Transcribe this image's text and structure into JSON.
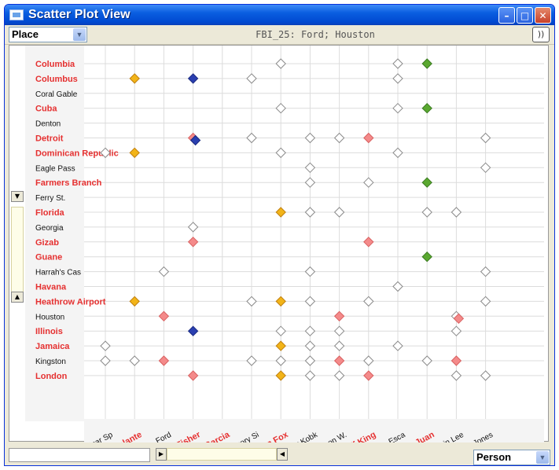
{
  "window": {
    "title": "Scatter Plot View",
    "controls": {
      "minimize": "–",
      "maximize": "□",
      "close": "✕"
    }
  },
  "toolbar": {
    "y_attribute": "Place",
    "status": "FBI_25: Ford; Houston",
    "sound_icon": "))"
  },
  "footer": {
    "x_attribute": "Person",
    "scroll_left": "◀",
    "scroll_right": "◀"
  },
  "colors": {
    "highlight_text": "#e53030",
    "normal_text": "#111111",
    "marker_outline": "#8a8a8a",
    "marker_pink": "#f48a8a",
    "marker_yellow": "#f2b418",
    "marker_green": "#5aa830",
    "marker_blue": "#2a3fb0",
    "grid": "#dcdcdc"
  },
  "chart_data": {
    "type": "scatter",
    "y_categories": [
      {
        "label": "Columbia",
        "highlight": true
      },
      {
        "label": "Columbus",
        "highlight": true
      },
      {
        "label": "Coral Gable",
        "highlight": false
      },
      {
        "label": "Cuba",
        "highlight": true
      },
      {
        "label": "Denton",
        "highlight": false
      },
      {
        "label": "Detroit",
        "highlight": true
      },
      {
        "label": "Dominican Republic",
        "highlight": true
      },
      {
        "label": "Eagle Pass",
        "highlight": false
      },
      {
        "label": "Farmers Branch",
        "highlight": true
      },
      {
        "label": "Ferry St.",
        "highlight": false
      },
      {
        "label": "Florida",
        "highlight": true
      },
      {
        "label": "Georgia",
        "highlight": false
      },
      {
        "label": "Gizab",
        "highlight": true
      },
      {
        "label": "Guane",
        "highlight": true
      },
      {
        "label": "Harrah's Cas",
        "highlight": false
      },
      {
        "label": "Havana",
        "highlight": true
      },
      {
        "label": "Heathrow Airport",
        "highlight": true
      },
      {
        "label": "Houston",
        "highlight": false
      },
      {
        "label": "Illinois",
        "highlight": true
      },
      {
        "label": "Jamaica",
        "highlight": true
      },
      {
        "label": "Kingston",
        "highlight": false
      },
      {
        "label": "London",
        "highlight": true
      }
    ],
    "x_categories": [
      {
        "label": "Edgar Sp",
        "highlight": false
      },
      {
        "label": "Escalante",
        "highlight": true
      },
      {
        "label": "Ford",
        "highlight": false
      },
      {
        "label": "Fred Fisher",
        "highlight": true
      },
      {
        "label": "George Garcia",
        "highlight": true
      },
      {
        "label": "Gregory Si",
        "highlight": false
      },
      {
        "label": "Herman Fox",
        "highlight": true
      },
      {
        "label": "Igor Kobk",
        "highlight": false
      },
      {
        "label": "Jason W.",
        "highlight": false
      },
      {
        "label": "Jeff King",
        "highlight": true
      },
      {
        "label": "Jose Esca",
        "highlight": false
      },
      {
        "label": "Juan",
        "highlight": true
      },
      {
        "label": "Kevin Lee",
        "highlight": false
      },
      {
        "label": "M. Jones",
        "highlight": false
      }
    ],
    "points": [
      {
        "x": "Escalante",
        "y": "Columbus",
        "kind": "yellow"
      },
      {
        "x": "Fred Fisher",
        "y": "Columbus",
        "kind": "blue"
      },
      {
        "x": "Gregory Si",
        "y": "Columbus",
        "kind": "plain"
      },
      {
        "x": "Herman Fox",
        "y": "Columbia",
        "kind": "plain"
      },
      {
        "x": "Herman Fox",
        "y": "Cuba",
        "kind": "plain"
      },
      {
        "x": "Jose Esca",
        "y": "Columbia",
        "kind": "plain"
      },
      {
        "x": "Jose Esca",
        "y": "Columbus",
        "kind": "plain"
      },
      {
        "x": "Jose Esca",
        "y": "Cuba",
        "kind": "plain"
      },
      {
        "x": "Juan",
        "y": "Columbia",
        "kind": "green"
      },
      {
        "x": "Juan",
        "y": "Cuba",
        "kind": "green"
      },
      {
        "x": "Edgar Sp",
        "y": "Dominican Republic",
        "kind": "plain"
      },
      {
        "x": "Escalante",
        "y": "Dominican Republic",
        "kind": "yellow"
      },
      {
        "x": "Fred Fisher",
        "y": "Detroit",
        "kind": "pink"
      },
      {
        "x": "Fred Fisher",
        "y": "Detroit",
        "kind": "blue"
      },
      {
        "x": "Gregory Si",
        "y": "Detroit",
        "kind": "plain"
      },
      {
        "x": "Herman Fox",
        "y": "Dominican Republic",
        "kind": "plain"
      },
      {
        "x": "Igor Kobk",
        "y": "Detroit",
        "kind": "plain"
      },
      {
        "x": "Jason W.",
        "y": "Detroit",
        "kind": "plain"
      },
      {
        "x": "Jeff King",
        "y": "Detroit",
        "kind": "pink"
      },
      {
        "x": "Jose Esca",
        "y": "Dominican Republic",
        "kind": "plain"
      },
      {
        "x": "M. Jones",
        "y": "Detroit",
        "kind": "plain"
      },
      {
        "x": "Igor Kobk",
        "y": "Eagle Pass",
        "kind": "plain"
      },
      {
        "x": "M. Jones",
        "y": "Eagle Pass",
        "kind": "plain"
      },
      {
        "x": "Igor Kobk",
        "y": "Farmers Branch",
        "kind": "plain"
      },
      {
        "x": "Jeff King",
        "y": "Farmers Branch",
        "kind": "plain"
      },
      {
        "x": "Juan",
        "y": "Farmers Branch",
        "kind": "green"
      },
      {
        "x": "Herman Fox",
        "y": "Florida",
        "kind": "yellow"
      },
      {
        "x": "Igor Kobk",
        "y": "Florida",
        "kind": "plain"
      },
      {
        "x": "Jason W.",
        "y": "Florida",
        "kind": "plain"
      },
      {
        "x": "Juan",
        "y": "Florida",
        "kind": "plain"
      },
      {
        "x": "Kevin Lee",
        "y": "Florida",
        "kind": "plain"
      },
      {
        "x": "Fred Fisher",
        "y": "Georgia",
        "kind": "plain"
      },
      {
        "x": "Fred Fisher",
        "y": "Gizab",
        "kind": "pink"
      },
      {
        "x": "Jeff King",
        "y": "Gizab",
        "kind": "pink"
      },
      {
        "x": "Juan",
        "y": "Guane",
        "kind": "green"
      },
      {
        "x": "Ford",
        "y": "Harrah's Cas",
        "kind": "plain"
      },
      {
        "x": "Igor Kobk",
        "y": "Harrah's Cas",
        "kind": "plain"
      },
      {
        "x": "M. Jones",
        "y": "Harrah's Cas",
        "kind": "plain"
      },
      {
        "x": "Escalante",
        "y": "Heathrow Airport",
        "kind": "yellow"
      },
      {
        "x": "Gregory Si",
        "y": "Heathrow Airport",
        "kind": "plain"
      },
      {
        "x": "Herman Fox",
        "y": "Heathrow Airport",
        "kind": "yellow"
      },
      {
        "x": "Igor Kobk",
        "y": "Heathrow Airport",
        "kind": "plain"
      },
      {
        "x": "Jeff King",
        "y": "Heathrow Airport",
        "kind": "plain"
      },
      {
        "x": "Jose Esca",
        "y": "Havana",
        "kind": "plain"
      },
      {
        "x": "M. Jones",
        "y": "Heathrow Airport",
        "kind": "plain"
      },
      {
        "x": "Ford",
        "y": "Houston",
        "kind": "pink"
      },
      {
        "x": "Jason W.",
        "y": "Houston",
        "kind": "pink"
      },
      {
        "x": "Kevin Lee",
        "y": "Houston",
        "kind": "plain"
      },
      {
        "x": "Kevin Lee",
        "y": "Houston",
        "kind": "pink"
      },
      {
        "x": "Fred Fisher",
        "y": "Illinois",
        "kind": "blue"
      },
      {
        "x": "Herman Fox",
        "y": "Illinois",
        "kind": "plain"
      },
      {
        "x": "Igor Kobk",
        "y": "Illinois",
        "kind": "plain"
      },
      {
        "x": "Jason W.",
        "y": "Illinois",
        "kind": "plain"
      },
      {
        "x": "Kevin Lee",
        "y": "Illinois",
        "kind": "plain"
      },
      {
        "x": "Edgar Sp",
        "y": "Jamaica",
        "kind": "plain"
      },
      {
        "x": "Herman Fox",
        "y": "Jamaica",
        "kind": "yellow"
      },
      {
        "x": "Igor Kobk",
        "y": "Jamaica",
        "kind": "plain"
      },
      {
        "x": "Jason W.",
        "y": "Jamaica",
        "kind": "plain"
      },
      {
        "x": "Jose Esca",
        "y": "Jamaica",
        "kind": "plain"
      },
      {
        "x": "Edgar Sp",
        "y": "Kingston",
        "kind": "plain"
      },
      {
        "x": "Escalante",
        "y": "Kingston",
        "kind": "plain"
      },
      {
        "x": "Ford",
        "y": "Kingston",
        "kind": "pink"
      },
      {
        "x": "Gregory Si",
        "y": "Kingston",
        "kind": "plain"
      },
      {
        "x": "Herman Fox",
        "y": "Kingston",
        "kind": "plain"
      },
      {
        "x": "Igor Kobk",
        "y": "Kingston",
        "kind": "plain"
      },
      {
        "x": "Jason W.",
        "y": "Kingston",
        "kind": "pink"
      },
      {
        "x": "Jeff King",
        "y": "Kingston",
        "kind": "plain"
      },
      {
        "x": "Juan",
        "y": "Kingston",
        "kind": "plain"
      },
      {
        "x": "Kevin Lee",
        "y": "Kingston",
        "kind": "pink"
      },
      {
        "x": "Fred Fisher",
        "y": "London",
        "kind": "pink"
      },
      {
        "x": "Herman Fox",
        "y": "London",
        "kind": "yellow"
      },
      {
        "x": "Igor Kobk",
        "y": "London",
        "kind": "plain"
      },
      {
        "x": "Jason W.",
        "y": "London",
        "kind": "plain"
      },
      {
        "x": "Jeff King",
        "y": "London",
        "kind": "pink"
      },
      {
        "x": "Kevin Lee",
        "y": "London",
        "kind": "plain"
      },
      {
        "x": "M. Jones",
        "y": "London",
        "kind": "plain"
      }
    ]
  }
}
